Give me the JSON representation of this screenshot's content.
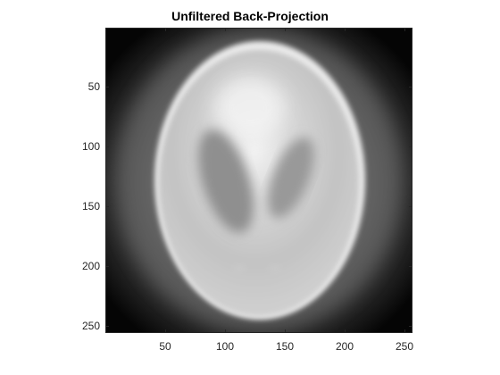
{
  "figure": {
    "title": "Unfiltered Back-Projection"
  },
  "image": {
    "description_colormap": "gray",
    "subject": "blurred Shepp-Logan phantom",
    "size": [
      256,
      256
    ]
  },
  "axes": {
    "x_ticks": [
      "50",
      "100",
      "150",
      "200",
      "250"
    ],
    "y_ticks": [
      "50",
      "100",
      "150",
      "200",
      "250"
    ],
    "x_tick_values": [
      50,
      100,
      150,
      200,
      250
    ],
    "y_tick_values": [
      50,
      100,
      150,
      200,
      250
    ],
    "xlim": [
      0.5,
      256.5
    ],
    "ylim": [
      0.5,
      256.5
    ]
  }
}
